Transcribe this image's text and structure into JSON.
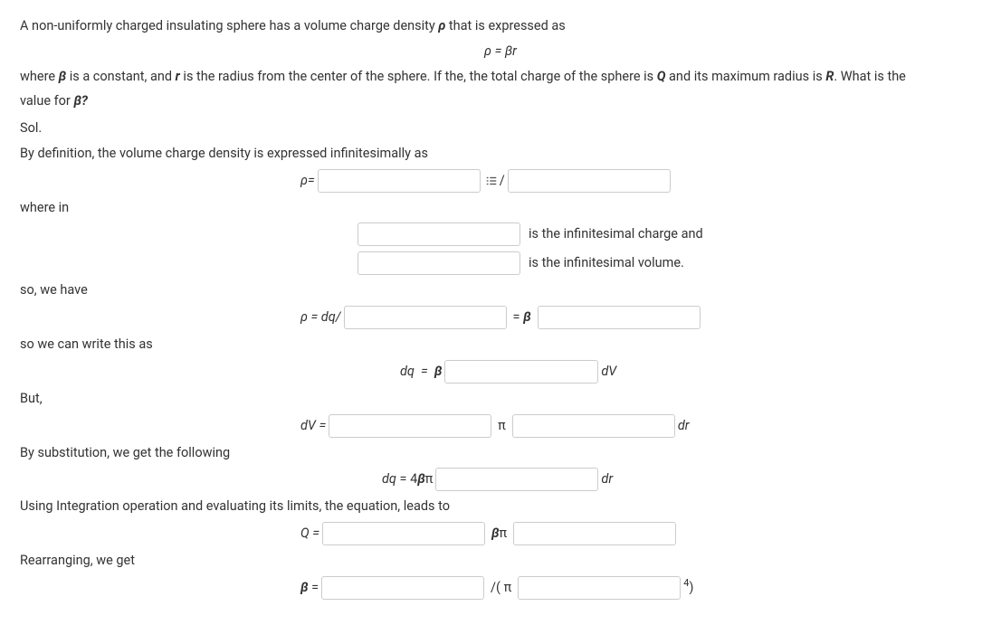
{
  "problem": {
    "intro": "A non-uniformly charged insulating sphere has a volume charge density <span class=\"italic-var\">ρ</span> that is expressed as",
    "formula_center": "<span class=\"text-italic\">ρ = βr</span>",
    "where_line": "where <span class=\"italic-var\">β</span> is a constant, and <span class=\"italic-var\">r</span> is the radius from the center of the sphere. If the, the total charge of the sphere is <span class=\"italic-var\">Q</span> and its maximum radius is <span class=\"italic-var\">R</span>. What is the",
    "question": "value for <span class=\"italic-var\">β?</span>",
    "sol": "Sol.",
    "definition": "By definition, the volume charge density is expressed infinitesimally as",
    "where_in": "where in",
    "inf_charge": "is the infinitesimal charge and",
    "inf_volume": "is the infinitesimal volume.",
    "so_we_have": "so, we have",
    "so_write": "so we can write this as",
    "but": "But,",
    "by_sub": "By substitution, we get the following",
    "using_int": "Using Integration operation and evaluating its limits, the equation, leads to",
    "rearranging": "Rearranging, we get"
  },
  "eq": {
    "rho_eq": "<span class=\"text-italic\">ρ=</span>",
    "slash": "/",
    "rho_dq": "<span class=\"text-italic\">ρ = dq/</span>",
    "eq_beta": "= <span class=\"text-italic bold\">β</span>",
    "dq_beta": "<span class=\"text-italic\">dq &nbsp;= &nbsp;<span class=\"bold\">β</span></span>",
    "dV_label": "<span class=\"text-italic\">dV</span>",
    "dV_eq": "<span class=\"text-italic\">dV =</span>",
    "pi": "π",
    "dr": "<span class=\"text-italic\">dr</span>",
    "dq_4bpi": "<span class=\"text-italic\">dq</span> = 4<span class=\"text-italic bold\">β</span>π",
    "Q_eq": "<span class=\"text-italic\">Q =</span>",
    "beta_pi": "<span class=\"text-italic bold\">β</span>π",
    "B_eq": "<span class=\"text-italic bold\">β</span> =",
    "over_pi": "/( π",
    "sup4": "4",
    "paren": ")"
  },
  "style": {
    "input_border": "#cccccc",
    "text_color": "#333333",
    "font_size": 14.5,
    "input_height": 26
  }
}
